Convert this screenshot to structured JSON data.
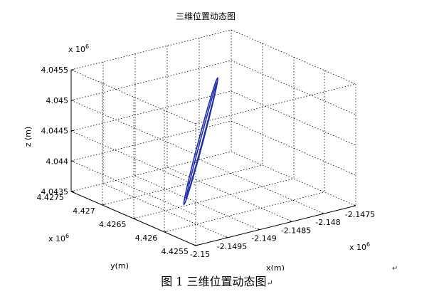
{
  "chart_data": {
    "type": "line3d",
    "title": "三维位置动态图",
    "xlabel": "x(m)",
    "ylabel": "y(m)",
    "zlabel": "z (m)",
    "x_exponent": "x 10",
    "x_exponent_power": "6",
    "y_exponent": "x 10",
    "y_exponent_power": "6",
    "z_exponent": "x 10",
    "z_exponent_power": "6",
    "xlim": [
      -2.15,
      -2.1475
    ],
    "ylim": [
      4.4255,
      4.4275
    ],
    "zlim": [
      4.0435,
      4.0455
    ],
    "x_ticks": [
      "-2.15",
      "-2.1495",
      "-2.149",
      "-2.1485",
      "-2.148",
      "-2.1475"
    ],
    "y_ticks": [
      "4.4255",
      "4.426",
      "4.4265",
      "4.427",
      "4.4275"
    ],
    "z_ticks": [
      "4.0435",
      "4.044",
      "4.0445",
      "4.045",
      "4.0455"
    ],
    "grid": true,
    "series": [
      {
        "color": "#1f2ea8",
        "start": {
          "x": -2.1496,
          "y": 4.4261,
          "z": 4.0438
        },
        "end": {
          "x": -2.1481,
          "y": 4.4271,
          "z": 4.04505
        }
      }
    ]
  },
  "caption": "图 1  三维位置动态图",
  "caption_mark": "↵",
  "side_mark": "↵"
}
